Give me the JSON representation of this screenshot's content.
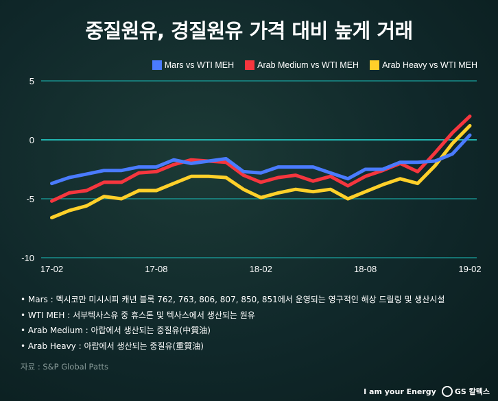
{
  "title": "중질원유, 경질원유 가격 대비 높게 거래",
  "chart_data": {
    "type": "line",
    "title": "",
    "xlabel": "",
    "ylabel": "",
    "ylim": [
      -10,
      5
    ],
    "yticks": [
      "5",
      "0",
      "-5",
      "-10"
    ],
    "ytick_values": [
      5,
      0,
      -5,
      -10
    ],
    "xtick_labels": [
      "17-02",
      "17-08",
      "18-02",
      "18-08",
      "19-02"
    ],
    "xtick_index": [
      0,
      6,
      12,
      18,
      24
    ],
    "x": [
      "17-02",
      "17-03",
      "17-04",
      "17-05",
      "17-06",
      "17-07",
      "17-08",
      "17-09",
      "17-10",
      "17-11",
      "17-12",
      "18-01",
      "18-02",
      "18-03",
      "18-04",
      "18-05",
      "18-06",
      "18-07",
      "18-08",
      "18-09",
      "18-10",
      "18-11",
      "18-12",
      "19-01",
      "19-02"
    ],
    "grid": true,
    "legend_position": "top-right",
    "series": [
      {
        "name": "Mars vs WTI MEH",
        "color": "#4a7bff",
        "values": [
          -3.7,
          -3.2,
          -2.9,
          -2.6,
          -2.6,
          -2.3,
          -2.3,
          -1.7,
          -2.0,
          -1.8,
          -1.6,
          -2.7,
          -2.8,
          -2.3,
          -2.3,
          -2.3,
          -2.8,
          -3.3,
          -2.5,
          -2.5,
          -1.9,
          -1.9,
          -1.8,
          -1.2,
          0.4
        ]
      },
      {
        "name": "Arab Medium vs WTI MEH",
        "color": "#f5363e",
        "values": [
          -5.2,
          -4.5,
          -4.3,
          -3.6,
          -3.6,
          -2.8,
          -2.7,
          -2.1,
          -1.7,
          -1.8,
          -1.9,
          -3.0,
          -3.6,
          -3.2,
          -3.0,
          -3.5,
          -3.1,
          -3.9,
          -3.1,
          -2.6,
          -2.0,
          -2.7,
          -1.1,
          0.6,
          2.0
        ]
      },
      {
        "name": "Arab Heavy  vs WTI MEH",
        "color": "#ffd02a",
        "values": [
          -6.6,
          -6.0,
          -5.6,
          -4.8,
          -5.0,
          -4.3,
          -4.3,
          -3.7,
          -3.1,
          -3.1,
          -3.2,
          -4.2,
          -4.9,
          -4.5,
          -4.2,
          -4.4,
          -4.2,
          -5.0,
          -4.4,
          -3.8,
          -3.3,
          -3.7,
          -2.2,
          -0.3,
          1.2
        ]
      }
    ]
  },
  "notes": [
    "• Mars : 멕시코만 미시시피 캐년 블록 762, 763, 806, 807, 850, 851에서 운영되는 영구적인 해상 드릴링 및 생산시설",
    "• WTI MEH : 서부텍사스유 중 휴스톤 및 텍사스에서 생산되는 원유",
    "• Arab Medium : 아랍에서 생산되는 중질유(中質油)",
    "• Arab Heavy : 아랍에서 생산되는 중질유(重質油)"
  ],
  "source": "자료 : S&P Global Patts",
  "brand": {
    "slogan": "I am your Energy",
    "logo": "GS 칼텍스"
  },
  "colors": {
    "grid": "#1aa3a0",
    "background": "#10282a"
  }
}
